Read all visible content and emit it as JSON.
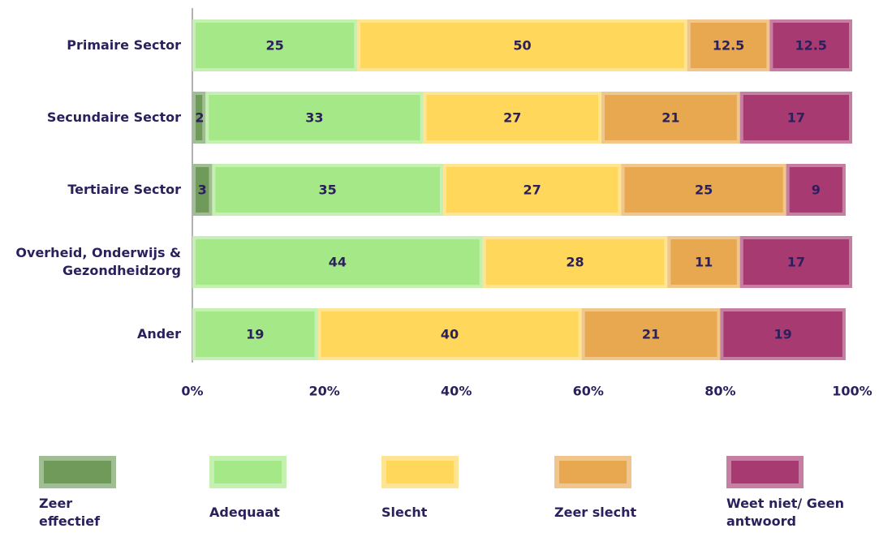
{
  "chart_data": {
    "type": "stacked_bar_horizontal",
    "categories": [
      "Primaire Sector",
      "Secundaire Sector",
      "Tertiaire Sector",
      "Overheid, Onderwijs & Gezondheidzorg",
      "Ander"
    ],
    "series": [
      {
        "name": "Zeer effectief",
        "color": "#6f9a5a",
        "values": [
          0,
          2,
          3,
          0,
          0
        ]
      },
      {
        "name": "Adequaat",
        "color": "#a5e887",
        "values": [
          25,
          33,
          35,
          44,
          19
        ]
      },
      {
        "name": "Slecht",
        "color": "#ffd75a",
        "values": [
          50,
          27,
          27,
          28,
          40
        ]
      },
      {
        "name": "Zeer slecht",
        "color": "#e8a850",
        "values": [
          12.5,
          21,
          25,
          11,
          21
        ]
      },
      {
        "name": "Weet niet/ Geen antwoord",
        "color": "#a83a72",
        "values": [
          12.5,
          17,
          9,
          17,
          19
        ]
      }
    ],
    "xlim": [
      0,
      100
    ],
    "xticks": [
      {
        "value": 0,
        "label": "0%"
      },
      {
        "value": 20,
        "label": "20%"
      },
      {
        "value": 40,
        "label": "40%"
      },
      {
        "value": 60,
        "label": "60%"
      },
      {
        "value": 80,
        "label": "80%"
      },
      {
        "value": 100,
        "label": "100%"
      }
    ]
  }
}
